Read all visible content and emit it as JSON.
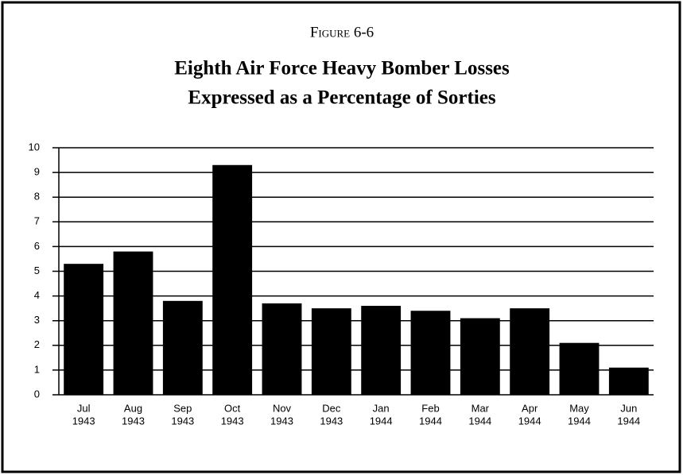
{
  "chart_data": {
    "type": "bar",
    "figure_label": "Figure 6-6",
    "title": "Eighth Air Force Heavy Bomber Losses",
    "subtitle": "Expressed as a Percentage of Sorties",
    "categories": [
      [
        "Jul",
        "1943"
      ],
      [
        "Aug",
        "1943"
      ],
      [
        "Sep",
        "1943"
      ],
      [
        "Oct",
        "1943"
      ],
      [
        "Nov",
        "1943"
      ],
      [
        "Dec",
        "1943"
      ],
      [
        "Jan",
        "1944"
      ],
      [
        "Feb",
        "1944"
      ],
      [
        "Mar",
        "1944"
      ],
      [
        "Apr",
        "1944"
      ],
      [
        "May",
        "1944"
      ],
      [
        "Jun",
        "1944"
      ]
    ],
    "values": [
      5.3,
      5.8,
      3.8,
      9.3,
      3.7,
      3.5,
      3.6,
      3.4,
      3.1,
      3.5,
      2.1,
      1.1
    ],
    "color": "#000000",
    "ylim": [
      0,
      10
    ],
    "yticks": [
      0,
      1,
      2,
      3,
      4,
      5,
      6,
      7,
      8,
      9,
      10
    ],
    "grid": true
  }
}
